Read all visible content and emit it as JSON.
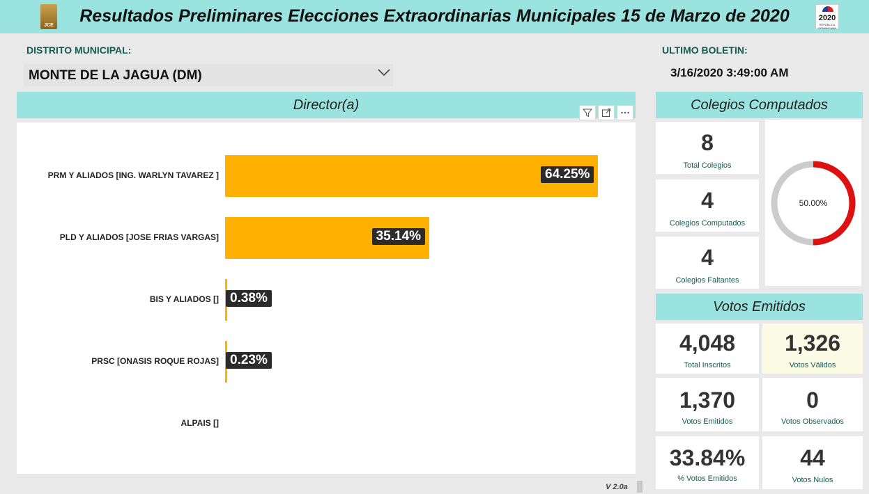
{
  "header": {
    "title": "Resultados Preliminares Elecciones Extraordinarias Municipales 15 de Marzo de 2020"
  },
  "logos": {
    "left": "JCE",
    "right_year": "2020",
    "right_top": "ELECCIONES",
    "right_sub": "REPÚBLICA DOMINICANA"
  },
  "district": {
    "label": "DISTRITO MUNICIPAL:",
    "value": "MONTE DE LA JAGUA (DM)",
    "icon": "chevron-down-icon"
  },
  "bulletin": {
    "label": "ULTIMO BOLETIN:",
    "value": "3/16/2020 3:49:00 AM"
  },
  "director_section": {
    "title": "Director(a)",
    "icons": [
      "filter-icon",
      "focus-mode-icon",
      "more-options-icon"
    ]
  },
  "chart_data": {
    "type": "bar",
    "orientation": "horizontal",
    "categories": [
      "PRM Y ALIADOS [ING. WARLYN TAVAREZ ]",
      "PLD Y ALIADOS [JOSE FRIAS VARGAS]",
      "BIS Y ALIADOS []",
      "PRSC [ONASIS ROQUE ROJAS]",
      "ALPAIS []"
    ],
    "values": [
      64.25,
      35.14,
      0.38,
      0.23,
      0
    ],
    "data_labels": [
      "64.25%",
      "35.14%",
      "0.38%",
      "0.23%",
      ""
    ],
    "xlim": [
      0,
      64.25
    ],
    "bar_color": "#ffb000",
    "label_bg": "#2b2b2b"
  },
  "colegios": {
    "title": "Colegios Computados",
    "cards": [
      {
        "value": "8",
        "caption": "Total Colegios"
      },
      {
        "value": "4",
        "caption": "Colegios Computados"
      },
      {
        "value": "4",
        "caption": "Colegios Faltantes"
      }
    ],
    "donut": {
      "label": "50.00%",
      "fraction": 0.5,
      "fill_color": "#dd1111",
      "track_color": "#cccccc"
    }
  },
  "votos": {
    "title": "Votos Emitidos",
    "cards": [
      {
        "value": "4,048",
        "caption": "Total Inscritos"
      },
      {
        "value": "1,326",
        "caption": "Votos Válidos"
      },
      {
        "value": "1,370",
        "caption": "Votos Emitidos"
      },
      {
        "value": "0",
        "caption": "Votos Observados"
      },
      {
        "value": "33.84%",
        "caption": "% Votos Emitidos"
      },
      {
        "value": "44",
        "caption": "Votos Nulos"
      }
    ]
  },
  "footer": {
    "version": "V 2.0a"
  },
  "colors": {
    "band": "#9be3de",
    "background": "#e9e9e9",
    "caption": "#175a4e"
  }
}
